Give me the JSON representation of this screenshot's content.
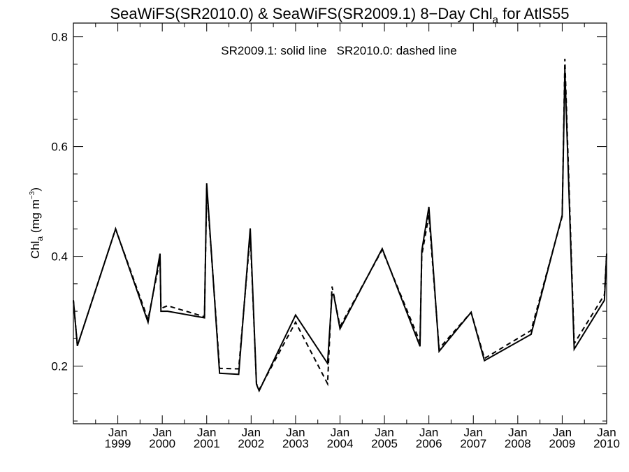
{
  "chart_data": {
    "type": "line",
    "title": {
      "prefix": "SeaWiFS(SR2010.0) & SeaWiFS(SR2009.1) 8−Day Chl",
      "subscript": "a",
      "suffix": " for AtlS55"
    },
    "ylabel": {
      "prefix": "Chl",
      "subscript": "a",
      "units_prefix": " (mg m",
      "superscript": "−3",
      "units_suffix": ")"
    },
    "annotation": "SR2009.1: solid line   SR2010.0: dashed line",
    "xlim": [
      1998.0,
      2010.0
    ],
    "ylim": [
      0.095,
      0.825
    ],
    "y_ticks": [
      {
        "value": 0.2,
        "label": "0.2"
      },
      {
        "value": 0.4,
        "label": "0.4"
      },
      {
        "value": 0.6,
        "label": "0.6"
      },
      {
        "value": 0.8,
        "label": "0.8"
      }
    ],
    "x_ticks": [
      {
        "value": 1999.0,
        "month": "Jan",
        "year": "1999"
      },
      {
        "value": 2000.0,
        "month": "Jan",
        "year": "2000"
      },
      {
        "value": 2001.0,
        "month": "Jan",
        "year": "2001"
      },
      {
        "value": 2002.0,
        "month": "Jan",
        "year": "2002"
      },
      {
        "value": 2003.0,
        "month": "Jan",
        "year": "2003"
      },
      {
        "value": 2004.0,
        "month": "Jan",
        "year": "2004"
      },
      {
        "value": 2005.0,
        "month": "Jan",
        "year": "2005"
      },
      {
        "value": 2006.0,
        "month": "Jan",
        "year": "2006"
      },
      {
        "value": 2007.0,
        "month": "Jan",
        "year": "2007"
      },
      {
        "value": 2008.0,
        "month": "Jan",
        "year": "2008"
      },
      {
        "value": 2009.0,
        "month": "Jan",
        "year": "2009"
      },
      {
        "value": 2010.0,
        "month": "Jan",
        "year": "2010"
      }
    ],
    "series": [
      {
        "name": "SR2009.1",
        "style": "solid",
        "x": [
          1998.0,
          1998.09,
          1998.95,
          1999.68,
          1999.95,
          1999.97,
          2000.12,
          2000.95,
          2001.0,
          2001.29,
          2001.72,
          2001.98,
          2002.12,
          2002.18,
          2003.0,
          2003.72,
          2003.82,
          2003.86,
          2004.0,
          2004.95,
          2005.8,
          2005.84,
          2006.0,
          2006.23,
          2006.95,
          2007.25,
          2008.3,
          2009.0,
          2009.06,
          2009.27,
          2009.95,
          2010.0
        ],
        "y": [
          0.32,
          0.237,
          0.45,
          0.28,
          0.405,
          0.3,
          0.3,
          0.288,
          0.533,
          0.187,
          0.185,
          0.451,
          0.167,
          0.155,
          0.293,
          0.205,
          0.331,
          0.329,
          0.268,
          0.414,
          0.236,
          0.41,
          0.49,
          0.227,
          0.298,
          0.21,
          0.258,
          0.475,
          0.74,
          0.231,
          0.32,
          0.405
        ]
      },
      {
        "name": "SR2010.0",
        "style": "dashed",
        "x": [
          1998.0,
          1998.09,
          1998.95,
          1999.68,
          1999.95,
          1999.97,
          2000.12,
          2000.95,
          2001.0,
          2001.29,
          2001.72,
          2001.98,
          2002.12,
          2002.18,
          2003.0,
          2003.72,
          2003.82,
          2003.86,
          2004.0,
          2004.95,
          2005.8,
          2005.84,
          2006.0,
          2006.23,
          2006.95,
          2007.25,
          2008.3,
          2009.0,
          2009.06,
          2009.27,
          2009.95,
          2010.0
        ],
        "y": [
          0.32,
          0.237,
          0.45,
          0.285,
          0.395,
          0.305,
          0.31,
          0.29,
          0.525,
          0.196,
          0.195,
          0.44,
          0.168,
          0.157,
          0.28,
          0.168,
          0.345,
          0.33,
          0.272,
          0.412,
          0.244,
          0.402,
          0.475,
          0.232,
          0.298,
          0.214,
          0.265,
          0.473,
          0.76,
          0.241,
          0.33,
          0.405
        ]
      }
    ]
  }
}
